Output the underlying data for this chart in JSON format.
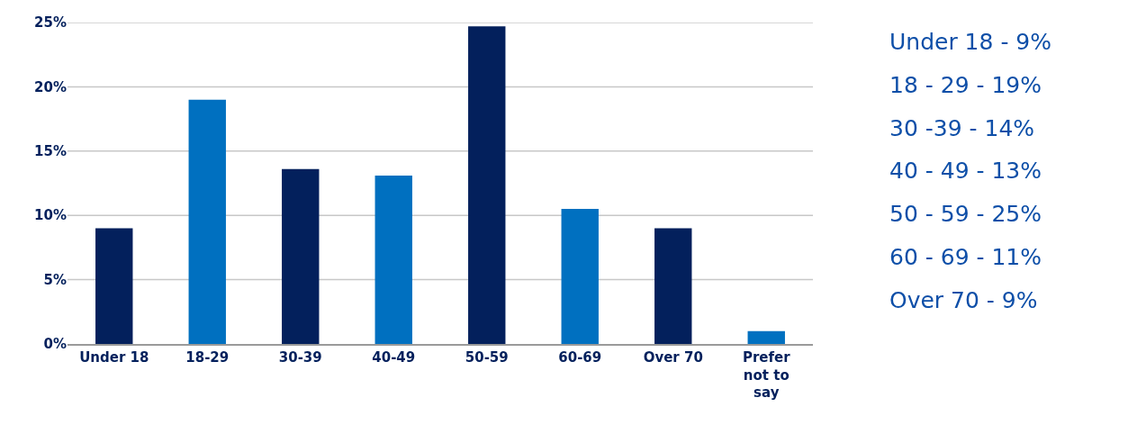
{
  "chart_data": {
    "type": "bar",
    "categories": [
      "Under 18",
      "18-29",
      "30-39",
      "40-49",
      "50-59",
      "60-69",
      "Over 70",
      "Prefer not to say"
    ],
    "values": [
      9,
      19,
      13.6,
      13.1,
      24.7,
      10.5,
      9,
      1
    ],
    "colors": [
      "#03205c",
      "#0070c0",
      "#03205c",
      "#0070c0",
      "#03205c",
      "#0070c0",
      "#03205c",
      "#0070c0"
    ],
    "ylim": [
      0,
      25
    ],
    "yticks": [
      {
        "value": 0,
        "label": "0%"
      },
      {
        "value": 5,
        "label": "5%"
      },
      {
        "value": 10,
        "label": "10%"
      },
      {
        "value": 15,
        "label": "15%"
      },
      {
        "value": 20,
        "label": "20%"
      },
      {
        "value": 25,
        "label": "25%"
      }
    ],
    "grid": "y",
    "annotations": [
      "Under 18 - 9%",
      "18 - 29 - 19%",
      "30 -39 - 14%",
      "40 - 49 - 13%",
      "50 - 59 - 25%",
      "60 - 69 - 11%",
      "Over 70 - 9%"
    ]
  }
}
